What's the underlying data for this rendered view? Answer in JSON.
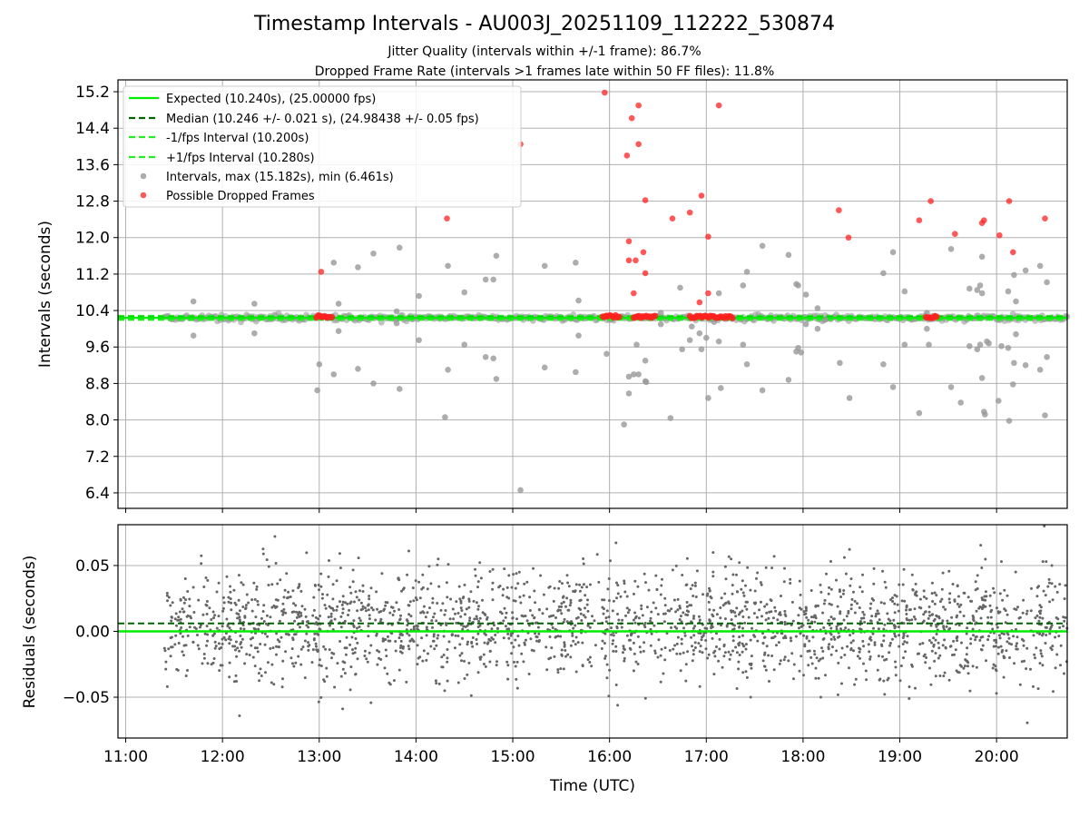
{
  "title": "Timestamp Intervals - AU003J_20251109_112222_530874",
  "subtitle_jitter": "Jitter Quality (intervals within +/-1 frame): 86.7%",
  "subtitle_dropped": "Dropped Frame Rate (intervals >1 frames late within 50 FF files): 11.8%",
  "colors": {
    "expected": "#00ee00",
    "median": "#006400",
    "bound": "#22ee22",
    "intervals": "#999999",
    "dropped": "#ff2020",
    "residuals": "#666666",
    "grid": "#b0b0b0"
  },
  "chart_data": [
    {
      "type": "scatter",
      "panel": "top",
      "title": "",
      "xlabel": "",
      "ylabel": "Intervals (seconds)",
      "xlim_hours": [
        10.92,
        20.73
      ],
      "ylim": [
        6.06,
        15.46
      ],
      "yticks": [
        "6.4",
        "7.2",
        "8.0",
        "8.8",
        "9.6",
        "10.4",
        "11.2",
        "12.0",
        "12.8",
        "13.6",
        "14.4",
        "15.2"
      ],
      "xticks": [
        "11:00",
        "12:00",
        "13:00",
        "14:00",
        "15:00",
        "16:00",
        "17:00",
        "18:00",
        "19:00",
        "20:00"
      ],
      "grid": true,
      "legend_position": "top-left",
      "lines": {
        "expected": 10.24,
        "median": 10.246,
        "minus_1fps": 10.2,
        "plus_1fps": 10.28
      },
      "legend": [
        "Expected (10.240s), (25.00000 fps)",
        "Median (10.246 +/- 0.021 s), (24.98438 +/- 0.05 fps)",
        "-1/fps Interval (10.200s)",
        "+1/fps Interval (10.280s)",
        "Intervals, max (15.182s), min (6.461s)",
        "Possible Dropped Frames"
      ],
      "baseline_band": {
        "x_start": 11.4,
        "x_end": 20.73,
        "center": 10.24,
        "spread": 0.06
      },
      "intervals_outliers": [
        [
          11.7,
          10.6
        ],
        [
          11.7,
          9.85
        ],
        [
          12.33,
          10.55
        ],
        [
          12.33,
          9.9
        ],
        [
          12.98,
          8.65
        ],
        [
          13.0,
          9.22
        ],
        [
          13.15,
          11.45
        ],
        [
          13.15,
          9.0
        ],
        [
          13.2,
          10.55
        ],
        [
          13.2,
          9.95
        ],
        [
          13.4,
          11.35
        ],
        [
          13.4,
          9.12
        ],
        [
          13.56,
          11.65
        ],
        [
          13.56,
          8.8
        ],
        [
          13.8,
          10.38
        ],
        [
          13.8,
          10.12
        ],
        [
          13.83,
          11.78
        ],
        [
          13.83,
          8.68
        ],
        [
          14.03,
          10.72
        ],
        [
          14.03,
          9.75
        ],
        [
          14.33,
          11.38
        ],
        [
          14.33,
          9.1
        ],
        [
          14.3,
          8.06
        ],
        [
          14.5,
          10.8
        ],
        [
          14.5,
          9.65
        ],
        [
          14.72,
          11.08
        ],
        [
          14.72,
          9.38
        ],
        [
          14.83,
          11.6
        ],
        [
          14.83,
          8.9
        ],
        [
          14.8,
          11.08
        ],
        [
          14.8,
          9.35
        ],
        [
          15.08,
          6.46
        ],
        [
          15.33,
          11.38
        ],
        [
          15.33,
          9.15
        ],
        [
          15.65,
          11.45
        ],
        [
          15.65,
          9.05
        ],
        [
          15.68,
          10.62
        ],
        [
          15.68,
          9.85
        ],
        [
          15.97,
          9.45
        ],
        [
          16.15,
          7.9
        ],
        [
          16.2,
          8.58
        ],
        [
          16.2,
          8.95
        ],
        [
          16.25,
          9.0
        ],
        [
          16.28,
          9.65
        ],
        [
          16.3,
          9.0
        ],
        [
          16.37,
          9.3
        ],
        [
          16.37,
          8.85
        ],
        [
          16.38,
          8.83
        ],
        [
          16.53,
          10.1
        ],
        [
          16.53,
          10.35
        ],
        [
          16.63,
          8.04
        ],
        [
          16.73,
          10.9
        ],
        [
          16.75,
          9.55
        ],
        [
          16.83,
          9.75
        ],
        [
          16.85,
          10.05
        ],
        [
          16.93,
          9.9
        ],
        [
          16.95,
          9.55
        ],
        [
          17.0,
          9.8
        ],
        [
          17.08,
          10.15
        ],
        [
          17.13,
          10.78
        ],
        [
          17.13,
          9.72
        ],
        [
          17.15,
          8.7
        ],
        [
          17.02,
          8.48
        ],
        [
          17.38,
          10.95
        ],
        [
          17.38,
          9.65
        ],
        [
          17.42,
          11.25
        ],
        [
          17.42,
          9.22
        ],
        [
          17.58,
          11.82
        ],
        [
          17.58,
          8.65
        ],
        [
          17.85,
          11.62
        ],
        [
          17.85,
          8.88
        ],
        [
          17.93,
          10.98
        ],
        [
          17.93,
          9.5
        ],
        [
          17.95,
          10.95
        ],
        [
          17.95,
          9.58
        ],
        [
          17.98,
          9.48
        ],
        [
          18.03,
          10.75
        ],
        [
          18.03,
          10.1
        ],
        [
          18.15,
          10.45
        ],
        [
          18.15,
          10.0
        ],
        [
          18.23,
          10.2
        ],
        [
          18.38,
          9.25
        ],
        [
          18.48,
          8.48
        ],
        [
          18.83,
          11.22
        ],
        [
          18.83,
          9.22
        ],
        [
          18.93,
          11.68
        ],
        [
          18.93,
          8.72
        ],
        [
          19.05,
          10.82
        ],
        [
          19.05,
          9.65
        ],
        [
          19.2,
          8.15
        ],
        [
          19.28,
          10.35
        ],
        [
          19.28,
          10.0
        ],
        [
          19.3,
          9.65
        ],
        [
          19.53,
          11.75
        ],
        [
          19.53,
          8.72
        ],
        [
          19.63,
          8.38
        ],
        [
          19.72,
          10.88
        ],
        [
          19.72,
          9.62
        ],
        [
          19.8,
          10.85
        ],
        [
          19.8,
          9.55
        ],
        [
          19.83,
          10.95
        ],
        [
          19.83,
          9.65
        ],
        [
          19.85,
          10.78
        ],
        [
          19.85,
          11.58
        ],
        [
          19.85,
          8.92
        ],
        [
          19.87,
          8.18
        ],
        [
          19.88,
          8.12
        ],
        [
          19.9,
          9.72
        ],
        [
          19.92,
          9.68
        ],
        [
          20.02,
          8.42
        ],
        [
          20.05,
          9.62
        ],
        [
          20.12,
          10.82
        ],
        [
          20.12,
          9.58
        ],
        [
          20.13,
          7.98
        ],
        [
          20.18,
          11.18
        ],
        [
          20.18,
          9.25
        ],
        [
          20.17,
          8.78
        ],
        [
          20.2,
          10.6
        ],
        [
          20.2,
          9.88
        ],
        [
          20.3,
          11.28
        ],
        [
          20.3,
          9.2
        ],
        [
          20.45,
          11.38
        ],
        [
          20.45,
          9.1
        ],
        [
          20.52,
          11.02
        ],
        [
          20.52,
          9.38
        ],
        [
          20.5,
          8.1
        ]
      ],
      "dropped_frames": [
        [
          13.02,
          11.25
        ],
        [
          15.08,
          14.05
        ],
        [
          14.32,
          12.42
        ],
        [
          15.95,
          15.18
        ],
        [
          16.18,
          13.8
        ],
        [
          16.23,
          14.62
        ],
        [
          16.3,
          14.9
        ],
        [
          16.3,
          14.05
        ],
        [
          16.37,
          12.82
        ],
        [
          16.2,
          11.92
        ],
        [
          16.2,
          11.5
        ],
        [
          16.27,
          11.5
        ],
        [
          16.35,
          11.68
        ],
        [
          16.37,
          11.22
        ],
        [
          16.25,
          10.78
        ],
        [
          16.65,
          12.42
        ],
        [
          16.83,
          12.55
        ],
        [
          16.95,
          12.92
        ],
        [
          17.02,
          12.02
        ],
        [
          17.13,
          14.9
        ],
        [
          16.93,
          10.58
        ],
        [
          17.02,
          10.78
        ],
        [
          18.37,
          12.6
        ],
        [
          18.47,
          12.0
        ],
        [
          19.2,
          12.38
        ],
        [
          19.32,
          12.8
        ],
        [
          19.57,
          12.08
        ],
        [
          19.85,
          12.32
        ],
        [
          19.87,
          12.38
        ],
        [
          20.03,
          12.05
        ],
        [
          20.13,
          12.8
        ],
        [
          20.17,
          11.68
        ],
        [
          20.5,
          12.42
        ]
      ],
      "dropped_clusters": [
        {
          "x_start": 12.97,
          "x_end": 13.13,
          "y": 10.27
        },
        {
          "x_start": 15.93,
          "x_end": 16.1,
          "y": 10.27
        },
        {
          "x_start": 16.25,
          "x_end": 16.47,
          "y": 10.26
        },
        {
          "x_start": 16.83,
          "x_end": 17.27,
          "y": 10.26
        },
        {
          "x_start": 19.27,
          "x_end": 19.38,
          "y": 10.26
        }
      ]
    },
    {
      "type": "scatter",
      "panel": "bottom",
      "title": "",
      "xlabel": "Time (UTC)",
      "ylabel": "Residuals (seconds)",
      "xlim_hours": [
        10.92,
        20.73
      ],
      "ylim": [
        -0.081,
        0.081
      ],
      "yticks": [
        "−0.05",
        "0.00",
        "0.05"
      ],
      "ytick_values": [
        -0.05,
        0.0,
        0.05
      ],
      "xticks": [
        "11:00",
        "12:00",
        "13:00",
        "14:00",
        "15:00",
        "16:00",
        "17:00",
        "18:00",
        "19:00",
        "20:00"
      ],
      "grid": true,
      "lines": {
        "zero": 0.0,
        "median_offset": 0.006
      },
      "residual_points": {
        "x_start": 11.4,
        "x_end": 20.73,
        "count": 2200,
        "sigma": 0.021,
        "range": [
          -0.076,
          0.08
        ]
      }
    }
  ]
}
